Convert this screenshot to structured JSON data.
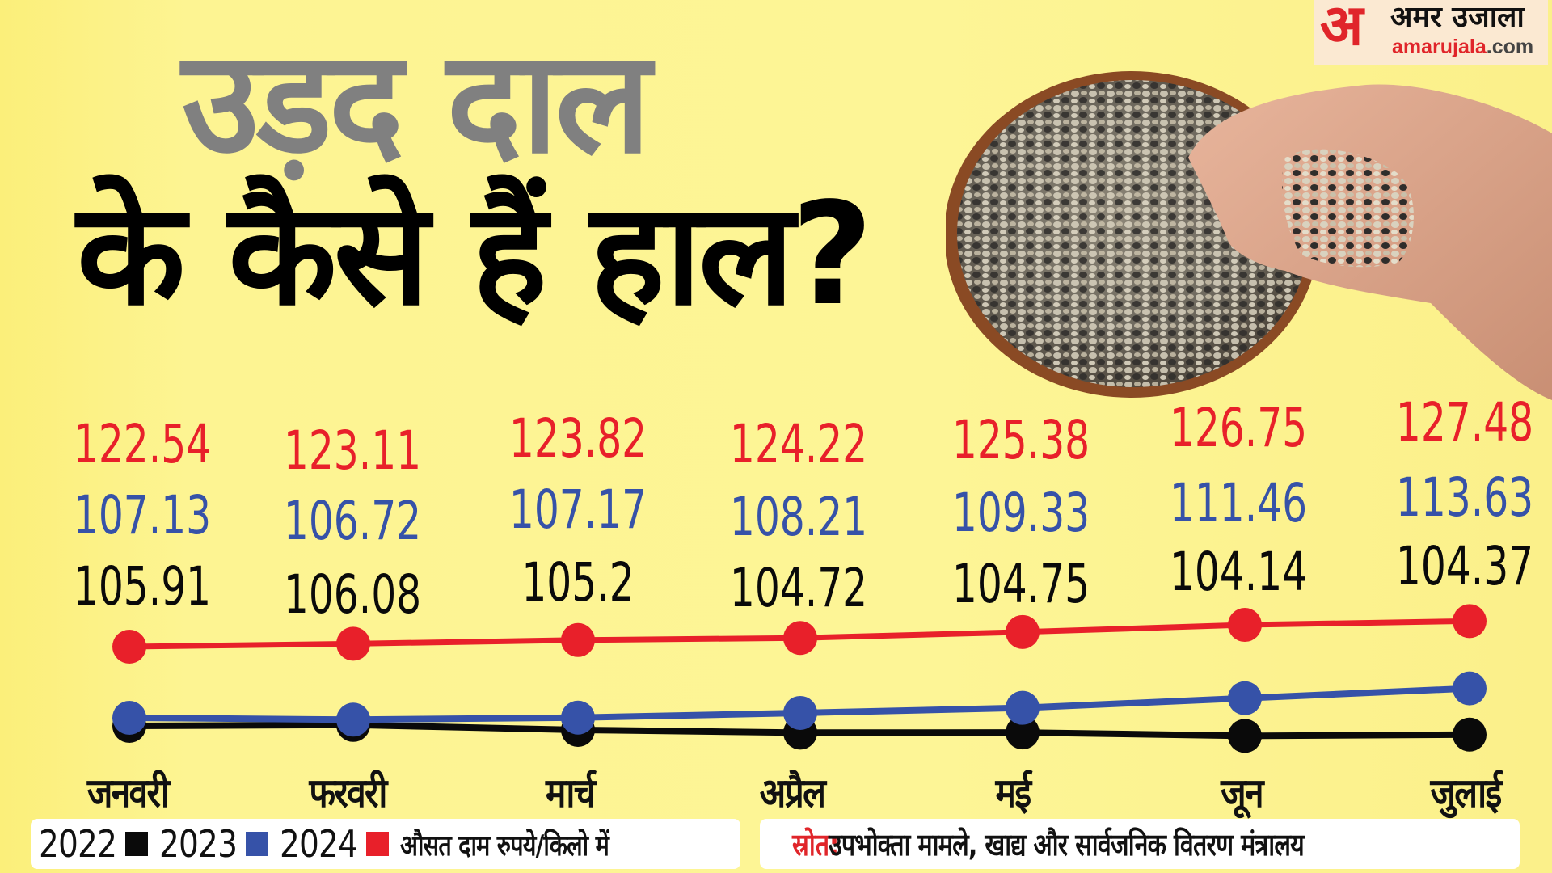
{
  "header": {
    "title_line1": "उड़द दाल",
    "title_line2": "के कैसे हैं हाल?"
  },
  "logo": {
    "mark": "अ",
    "name_hindi": "अमर उजाला",
    "domain_main": "amarujala",
    "domain_tld": ".com"
  },
  "colors": {
    "background": "#fdf492",
    "title_grey": "#808080",
    "series_2022": "#0a0a0a",
    "series_2023": "#3652a8",
    "series_2024": "#e8202a",
    "brand_red": "#e0252a"
  },
  "chart_data": {
    "type": "line",
    "title": "उड़द दाल के कैसे हैं हाल?",
    "xlabel": "",
    "ylabel": "औसत दाम रुपये/किलो में",
    "categories": [
      "जनवरी",
      "फरवरी",
      "मार्च",
      "अप्रैल",
      "मई",
      "जून",
      "जुलाई"
    ],
    "series": [
      {
        "name": "2024",
        "color": "#e8202a",
        "values": [
          122.54,
          123.11,
          123.82,
          124.22,
          125.38,
          126.75,
          127.48
        ]
      },
      {
        "name": "2023",
        "color": "#3652a8",
        "values": [
          107.13,
          106.72,
          107.17,
          108.21,
          109.33,
          111.46,
          113.63
        ]
      },
      {
        "name": "2022",
        "color": "#0a0a0a",
        "values": [
          105.91,
          106.08,
          105.2,
          104.72,
          104.75,
          104.14,
          104.37
        ]
      }
    ],
    "value_labels": {
      "2024": [
        "122.54",
        "123.11",
        "123.82",
        "124.22",
        "125.38",
        "126.75",
        "127.48"
      ],
      "2023": [
        "107.13",
        "106.72",
        "107.17",
        "108.21",
        "109.33",
        "111.46",
        "113.63"
      ],
      "2022": [
        "105.91",
        "106.08",
        "105.2",
        "104.72",
        "104.75",
        "104.14",
        "104.37"
      ]
    },
    "grid": false,
    "legend_position": "bottom-left",
    "unit": "औसत दाम रुपये/किलो में",
    "source": "उपभोक्ता मामले, खाद्य और सार्वजनिक वितरण मंत्रालय"
  },
  "legend": {
    "items": [
      {
        "label": "2022",
        "color": "#0a0a0a"
      },
      {
        "label": "2023",
        "color": "#3652a8"
      },
      {
        "label": "2024",
        "color": "#e8202a"
      }
    ],
    "unit_text": "औसत दाम रुपये/किलो में"
  },
  "source": {
    "label": "स्रोत:",
    "text": "उपभोक्ता मामले, खाद्य और सार्वजनिक वितरण मंत्रालय"
  },
  "photo": {
    "description": "हाथ में उड़द दाल और कटोरा"
  }
}
